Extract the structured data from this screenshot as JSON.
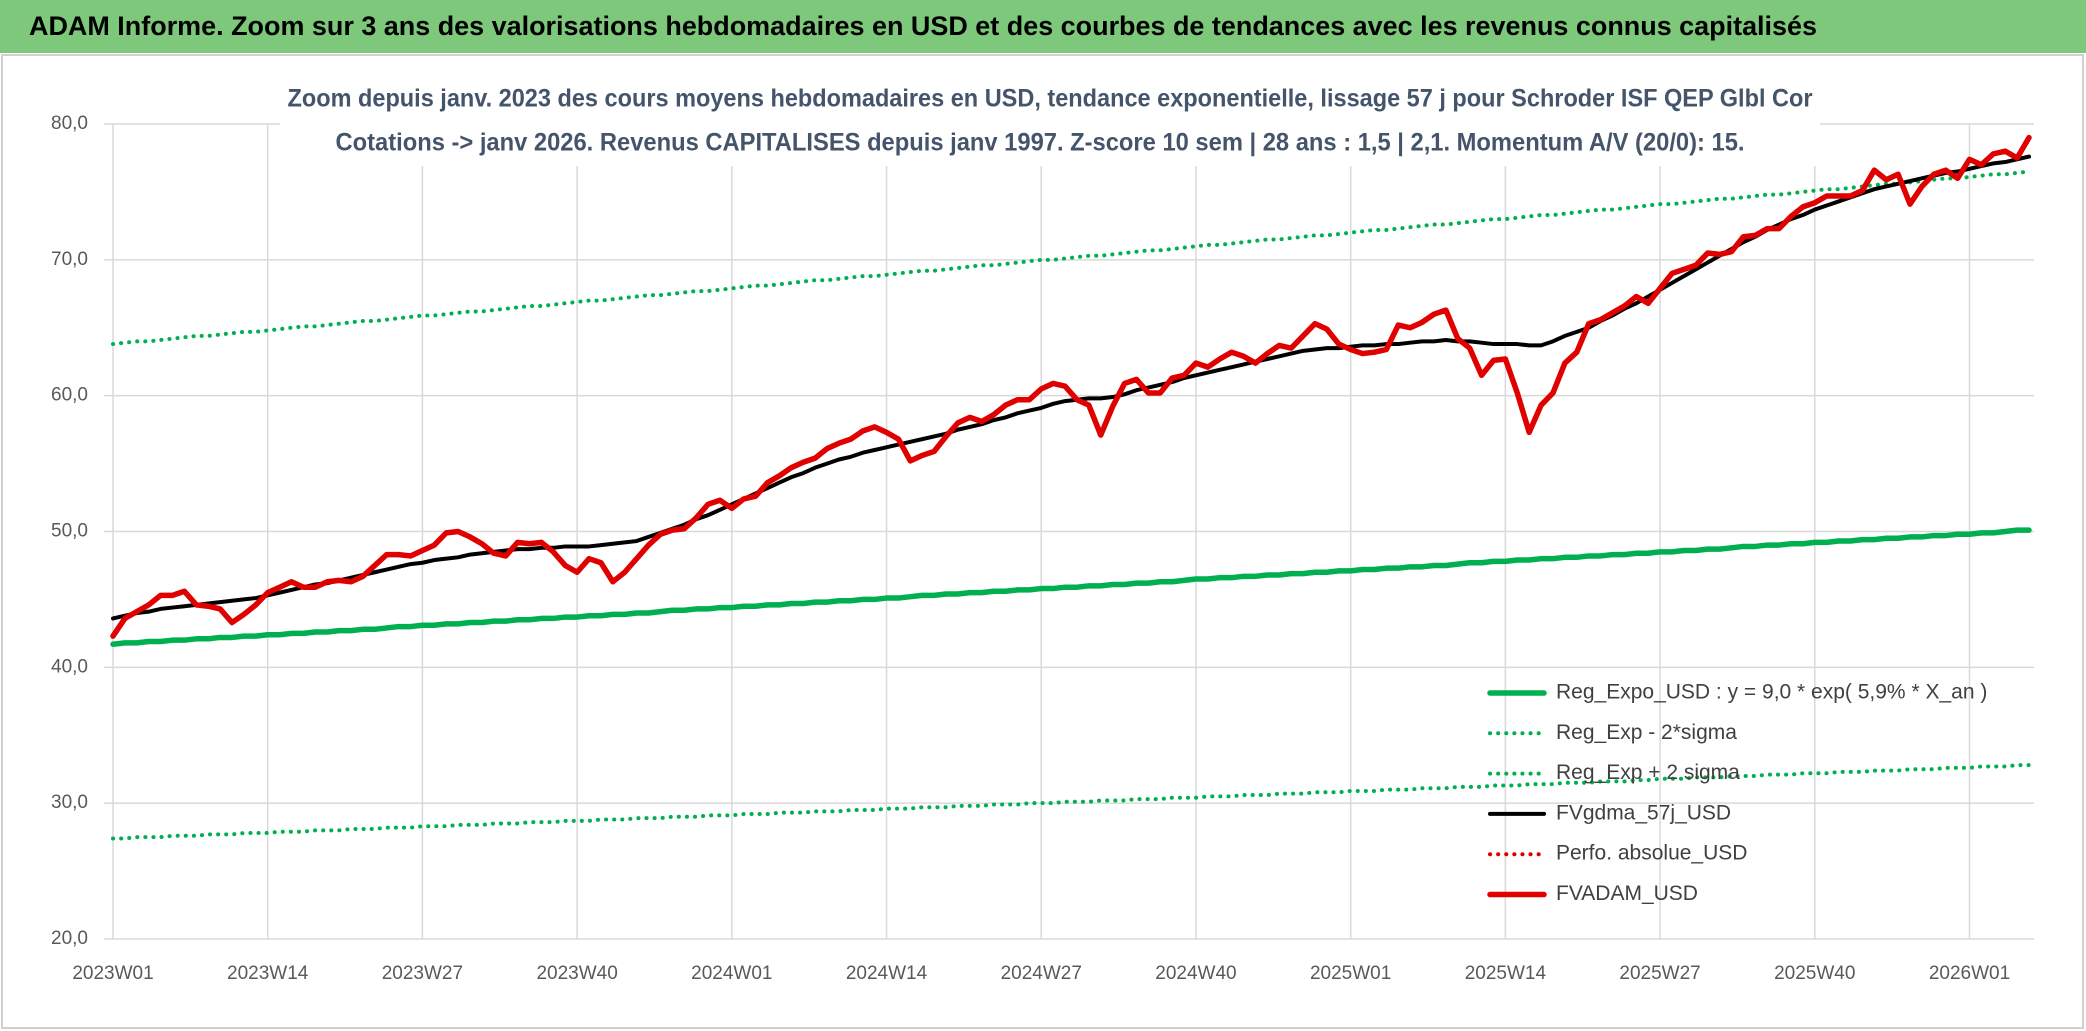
{
  "chart_data": {
    "type": "line",
    "title": "ADAM Informe. Zoom sur 3 ans des valorisations hebdomadaires en USD et des courbes de tendances avec les revenus connus capitalisés",
    "subtitle": [
      "Zoom depuis janv. 2023 des cours moyens hebdomadaires en USD, tendance exponentielle, lissage 57 j pour Schroder ISF QEP Glbl Cor",
      "Cotations -> janv 2026. Revenus CAPITALISES depuis janv 1997. Z-score 10 sem | 28 ans : 1,5 | 2,1. Momentum A/V (20/0): 15."
    ],
    "categories": [
      "2023W01",
      null,
      null,
      null,
      null,
      null,
      null,
      null,
      null,
      null,
      null,
      null,
      null,
      "2023W14",
      null,
      null,
      null,
      null,
      null,
      null,
      null,
      null,
      null,
      null,
      null,
      null,
      "2023W27",
      null,
      null,
      null,
      null,
      null,
      null,
      null,
      null,
      null,
      null,
      null,
      null,
      "2023W40",
      null,
      null,
      null,
      null,
      null,
      null,
      null,
      null,
      null,
      null,
      null,
      null,
      "2024W01",
      null,
      null,
      null,
      null,
      null,
      null,
      null,
      null,
      null,
      null,
      null,
      null,
      "2024W14",
      null,
      null,
      null,
      null,
      null,
      null,
      null,
      null,
      null,
      null,
      null,
      null,
      "2024W27",
      null,
      null,
      null,
      null,
      null,
      null,
      null,
      null,
      null,
      null,
      null,
      null,
      "2024W40",
      null,
      null,
      null,
      null,
      null,
      null,
      null,
      null,
      null,
      null,
      null,
      null,
      "2025W01",
      null,
      null,
      null,
      null,
      null,
      null,
      null,
      null,
      null,
      null,
      null,
      null,
      "2025W14",
      null,
      null,
      null,
      null,
      null,
      null,
      null,
      null,
      null,
      null,
      null,
      null,
      "2025W27",
      null,
      null,
      null,
      null,
      null,
      null,
      null,
      null,
      null,
      null,
      null,
      null,
      "2025W40",
      null,
      null,
      null,
      null,
      null,
      null,
      null,
      null,
      null,
      null,
      null,
      null,
      "2026W01",
      null,
      null,
      null,
      null,
      null
    ],
    "ylim": [
      20,
      80
    ],
    "yticks": [
      {
        "value": 20,
        "label": "20,0"
      },
      {
        "value": 30,
        "label": "30,0"
      },
      {
        "value": 40,
        "label": "40,0"
      },
      {
        "value": 50,
        "label": "50,0"
      },
      {
        "value": 60,
        "label": "60,0"
      },
      {
        "value": 70,
        "label": "70,0"
      },
      {
        "value": 80,
        "label": "80,0"
      }
    ],
    "grid": true,
    "legend": "lower right",
    "series": [
      {
        "name": "Reg_Expo_USD : y = 9,0 * exp( 5,9% *  X_an )",
        "color": "#00b050",
        "style": "thick",
        "values": [
          41.7,
          41.8,
          41.8,
          41.9,
          41.9,
          42.0,
          42.0,
          42.1,
          42.1,
          42.2,
          42.2,
          42.3,
          42.3,
          42.4,
          42.4,
          42.5,
          42.5,
          42.6,
          42.6,
          42.7,
          42.7,
          42.8,
          42.8,
          42.9,
          43.0,
          43.0,
          43.1,
          43.1,
          43.2,
          43.2,
          43.3,
          43.3,
          43.4,
          43.4,
          43.5,
          43.5,
          43.6,
          43.6,
          43.7,
          43.7,
          43.8,
          43.8,
          43.9,
          43.9,
          44.0,
          44.0,
          44.1,
          44.2,
          44.2,
          44.3,
          44.3,
          44.4,
          44.4,
          44.5,
          44.5,
          44.6,
          44.6,
          44.7,
          44.7,
          44.8,
          44.8,
          44.9,
          44.9,
          45.0,
          45.0,
          45.1,
          45.1,
          45.2,
          45.3,
          45.3,
          45.4,
          45.4,
          45.5,
          45.5,
          45.6,
          45.6,
          45.7,
          45.7,
          45.8,
          45.8,
          45.9,
          45.9,
          46.0,
          46.0,
          46.1,
          46.1,
          46.2,
          46.2,
          46.3,
          46.3,
          46.4,
          46.5,
          46.5,
          46.6,
          46.6,
          46.7,
          46.7,
          46.8,
          46.8,
          46.9,
          46.9,
          47.0,
          47.0,
          47.1,
          47.1,
          47.2,
          47.2,
          47.3,
          47.3,
          47.4,
          47.4,
          47.5,
          47.5,
          47.6,
          47.7,
          47.7,
          47.8,
          47.8,
          47.9,
          47.9,
          48.0,
          48.0,
          48.1,
          48.1,
          48.2,
          48.2,
          48.3,
          48.3,
          48.4,
          48.4,
          48.5,
          48.5,
          48.6,
          48.6,
          48.7,
          48.7,
          48.8,
          48.9,
          48.9,
          49.0,
          49.0,
          49.1,
          49.1,
          49.2,
          49.2,
          49.3,
          49.3,
          49.4,
          49.4,
          49.5,
          49.5,
          49.6,
          49.6,
          49.7,
          49.7,
          49.8,
          49.8,
          49.9,
          49.9,
          50.0,
          50.1,
          50.1
        ]
      },
      {
        "name": "Reg_Exp - 2*sigma",
        "color": "#00b050",
        "style": "dotted",
        "values": [
          27.4,
          27.4,
          27.5,
          27.5,
          27.5,
          27.6,
          27.6,
          27.6,
          27.7,
          27.7,
          27.7,
          27.8,
          27.8,
          27.8,
          27.9,
          27.9,
          27.9,
          28.0,
          28.0,
          28.0,
          28.1,
          28.1,
          28.1,
          28.2,
          28.2,
          28.2,
          28.3,
          28.3,
          28.3,
          28.4,
          28.4,
          28.4,
          28.5,
          28.5,
          28.5,
          28.6,
          28.6,
          28.6,
          28.7,
          28.7,
          28.7,
          28.8,
          28.8,
          28.8,
          28.9,
          28.9,
          28.9,
          29.0,
          29.0,
          29.0,
          29.1,
          29.1,
          29.1,
          29.2,
          29.2,
          29.2,
          29.3,
          29.3,
          29.3,
          29.4,
          29.4,
          29.4,
          29.5,
          29.5,
          29.5,
          29.6,
          29.6,
          29.6,
          29.7,
          29.7,
          29.7,
          29.8,
          29.8,
          29.8,
          29.9,
          29.9,
          29.9,
          30.0,
          30.0,
          30.0,
          30.1,
          30.1,
          30.1,
          30.2,
          30.2,
          30.2,
          30.3,
          30.3,
          30.3,
          30.4,
          30.4,
          30.4,
          30.5,
          30.5,
          30.5,
          30.6,
          30.6,
          30.6,
          30.7,
          30.7,
          30.7,
          30.8,
          30.8,
          30.8,
          30.9,
          30.9,
          30.9,
          31.0,
          31.0,
          31.0,
          31.1,
          31.1,
          31.1,
          31.2,
          31.2,
          31.2,
          31.3,
          31.3,
          31.3,
          31.4,
          31.4,
          31.4,
          31.5,
          31.5,
          31.5,
          31.6,
          31.6,
          31.6,
          31.7,
          31.7,
          31.8,
          31.8,
          31.8,
          31.9,
          31.9,
          31.9,
          32.0,
          32.0,
          32.0,
          32.1,
          32.1,
          32.1,
          32.2,
          32.2,
          32.2,
          32.3,
          32.3,
          32.3,
          32.4,
          32.4,
          32.4,
          32.5,
          32.5,
          32.5,
          32.6,
          32.6,
          32.6,
          32.7,
          32.7,
          32.7,
          32.8,
          32.8
        ]
      },
      {
        "name": "Reg_Exp + 2 sigma",
        "color": "#00b050",
        "style": "dotted",
        "values": [
          63.8,
          63.9,
          64.0,
          64.0,
          64.1,
          64.2,
          64.3,
          64.4,
          64.4,
          64.5,
          64.6,
          64.7,
          64.7,
          64.8,
          64.9,
          65.0,
          65.1,
          65.1,
          65.2,
          65.3,
          65.4,
          65.5,
          65.5,
          65.6,
          65.7,
          65.8,
          65.9,
          65.9,
          66.0,
          66.1,
          66.2,
          66.2,
          66.3,
          66.4,
          66.5,
          66.6,
          66.6,
          66.7,
          66.8,
          66.9,
          67.0,
          67.0,
          67.1,
          67.2,
          67.3,
          67.4,
          67.4,
          67.5,
          67.6,
          67.7,
          67.7,
          67.8,
          67.9,
          68.0,
          68.1,
          68.1,
          68.2,
          68.3,
          68.4,
          68.5,
          68.5,
          68.6,
          68.7,
          68.8,
          68.8,
          68.9,
          69.0,
          69.1,
          69.2,
          69.2,
          69.3,
          69.4,
          69.5,
          69.6,
          69.6,
          69.7,
          69.8,
          69.9,
          70.0,
          70.0,
          70.1,
          70.2,
          70.3,
          70.3,
          70.4,
          70.5,
          70.6,
          70.7,
          70.7,
          70.8,
          70.9,
          71.0,
          71.1,
          71.1,
          71.2,
          71.3,
          71.4,
          71.5,
          71.5,
          71.6,
          71.7,
          71.8,
          71.8,
          71.9,
          72.0,
          72.1,
          72.2,
          72.2,
          72.3,
          72.4,
          72.5,
          72.6,
          72.6,
          72.7,
          72.8,
          72.9,
          73.0,
          73.0,
          73.1,
          73.2,
          73.3,
          73.3,
          73.4,
          73.5,
          73.6,
          73.7,
          73.7,
          73.8,
          73.9,
          74.0,
          74.1,
          74.1,
          74.2,
          74.3,
          74.4,
          74.5,
          74.5,
          74.6,
          74.7,
          74.8,
          74.8,
          74.9,
          75.0,
          75.1,
          75.2,
          75.2,
          75.3,
          75.4,
          75.5,
          75.6,
          75.6,
          75.7,
          75.8,
          75.9,
          76.0,
          76.0,
          76.1,
          76.2,
          76.3,
          76.3,
          76.4,
          76.5
        ]
      },
      {
        "name": "FVgdma_57j_USD",
        "color": "#000000",
        "style": "solid",
        "values": [
          43.6,
          43.8,
          44.0,
          44.1,
          44.3,
          44.4,
          44.5,
          44.6,
          44.7,
          44.8,
          44.9,
          45.0,
          45.1,
          45.3,
          45.5,
          45.7,
          45.9,
          46.1,
          46.2,
          46.4,
          46.6,
          46.8,
          47.0,
          47.2,
          47.4,
          47.6,
          47.7,
          47.9,
          48.0,
          48.1,
          48.3,
          48.4,
          48.5,
          48.6,
          48.7,
          48.7,
          48.8,
          48.8,
          48.9,
          48.9,
          48.9,
          49.0,
          49.1,
          49.2,
          49.3,
          49.6,
          49.9,
          50.2,
          50.5,
          50.9,
          51.2,
          51.6,
          52.0,
          52.4,
          52.8,
          53.2,
          53.6,
          54.0,
          54.3,
          54.7,
          55.0,
          55.3,
          55.5,
          55.8,
          56.0,
          56.2,
          56.4,
          56.6,
          56.8,
          57.0,
          57.2,
          57.5,
          57.7,
          57.9,
          58.2,
          58.4,
          58.7,
          58.9,
          59.1,
          59.4,
          59.6,
          59.7,
          59.8,
          59.8,
          59.9,
          60.1,
          60.4,
          60.6,
          60.8,
          61.0,
          61.3,
          61.5,
          61.7,
          61.9,
          62.1,
          62.3,
          62.5,
          62.7,
          62.9,
          63.1,
          63.3,
          63.4,
          63.5,
          63.5,
          63.6,
          63.7,
          63.7,
          63.8,
          63.8,
          63.9,
          64.0,
          64.0,
          64.1,
          64.0,
          64.0,
          63.9,
          63.8,
          63.8,
          63.8,
          63.7,
          63.7,
          64.0,
          64.4,
          64.7,
          65.0,
          65.5,
          65.9,
          66.4,
          66.8,
          67.3,
          67.8,
          68.3,
          68.8,
          69.3,
          69.8,
          70.3,
          70.8,
          71.3,
          71.7,
          72.2,
          72.6,
          73.0,
          73.3,
          73.7,
          74.0,
          74.3,
          74.6,
          74.9,
          75.2,
          75.4,
          75.6,
          75.8,
          76.0,
          76.2,
          76.4,
          76.5,
          76.7,
          76.9,
          77.1,
          77.2,
          77.4,
          77.6
        ]
      },
      {
        "name": "Perfo. absolue_USD",
        "color": "#e00000",
        "style": "dotted"
      },
      {
        "name": "FVADAM_USD",
        "color": "#e00000",
        "style": "thick",
        "values": [
          42.3,
          43.6,
          44.1,
          44.6,
          45.3,
          45.3,
          45.6,
          44.6,
          44.5,
          44.3,
          43.3,
          43.9,
          44.6,
          45.5,
          45.9,
          46.3,
          45.9,
          45.9,
          46.3,
          46.4,
          46.3,
          46.7,
          47.5,
          48.3,
          48.3,
          48.2,
          48.6,
          49.0,
          49.9,
          50.0,
          49.6,
          49.1,
          48.4,
          48.2,
          49.2,
          49.1,
          49.2,
          48.5,
          47.5,
          47.0,
          48.0,
          47.7,
          46.3,
          47.0,
          48.0,
          49.0,
          49.8,
          50.1,
          50.2,
          51.0,
          52.0,
          52.3,
          51.7,
          52.4,
          52.6,
          53.6,
          54.1,
          54.7,
          55.1,
          55.4,
          56.1,
          56.5,
          56.8,
          57.4,
          57.7,
          57.3,
          56.8,
          55.2,
          55.6,
          55.9,
          57.0,
          58.0,
          58.4,
          58.1,
          58.6,
          59.3,
          59.7,
          59.7,
          60.5,
          60.9,
          60.7,
          59.7,
          59.3,
          57.1,
          59.2,
          60.9,
          61.2,
          60.2,
          60.2,
          61.3,
          61.5,
          62.4,
          62.1,
          62.7,
          63.2,
          62.9,
          62.4,
          63.1,
          63.7,
          63.5,
          64.4,
          65.3,
          64.9,
          63.8,
          63.4,
          63.1,
          63.2,
          63.4,
          65.2,
          65.0,
          65.4,
          66.0,
          66.3,
          64.2,
          63.5,
          61.5,
          62.6,
          62.7,
          60.2,
          57.3,
          59.3,
          60.2,
          62.4,
          63.2,
          65.3,
          65.6,
          66.1,
          66.6,
          67.3,
          66.8,
          67.9,
          69.0,
          69.3,
          69.6,
          70.5,
          70.4,
          70.6,
          71.7,
          71.8,
          72.3,
          72.3,
          73.2,
          73.9,
          74.2,
          74.7,
          74.7,
          74.7,
          75.1,
          76.6,
          75.9,
          76.3,
          74.1,
          75.4,
          76.3,
          76.6,
          76.0,
          77.4,
          77.0,
          77.8,
          78.0,
          77.5,
          79.0
        ]
      }
    ]
  }
}
